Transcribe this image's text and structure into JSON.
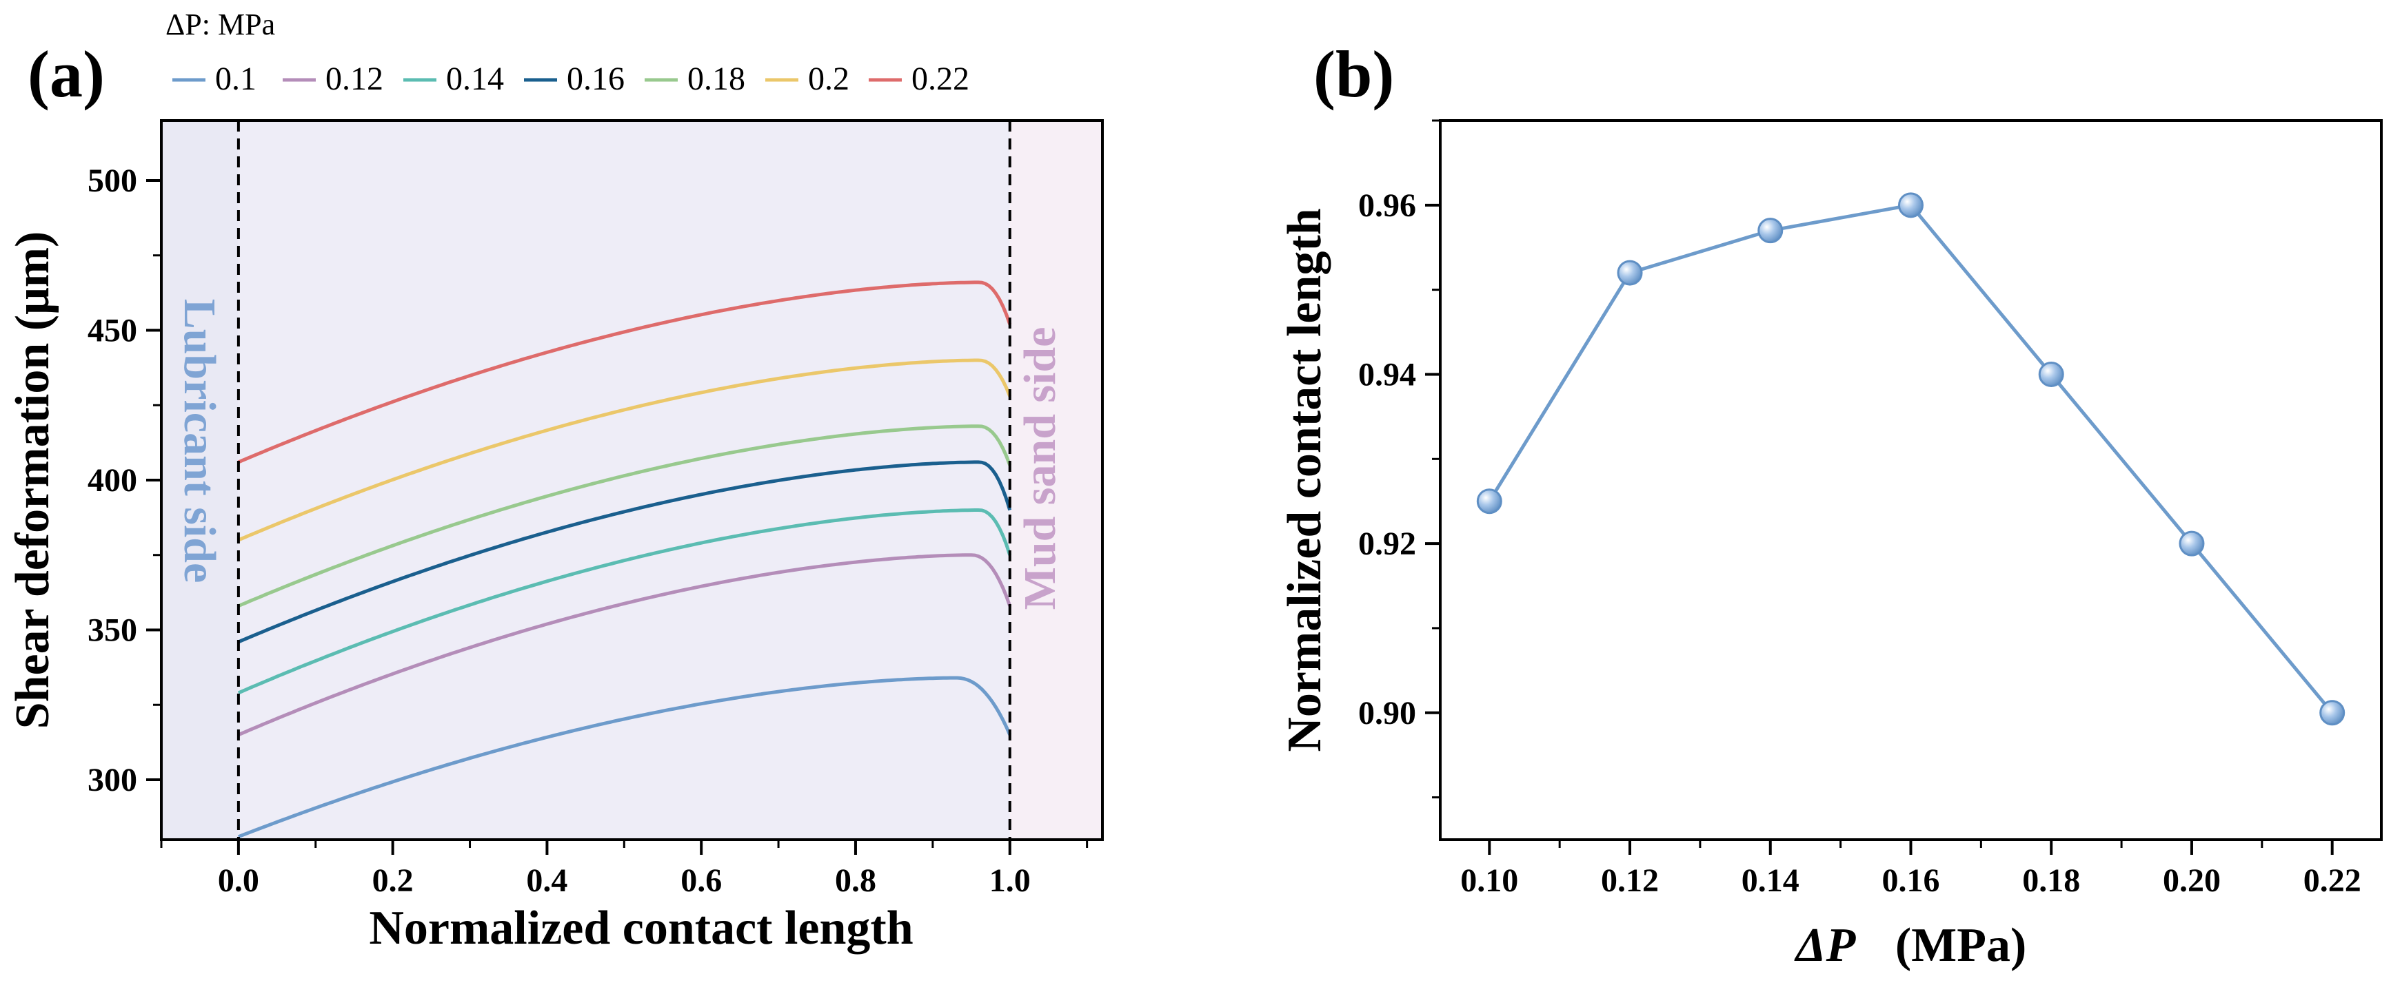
{
  "chart_data": [
    {
      "panel": "(a)",
      "type": "line",
      "xlabel": "Normalized contact length",
      "ylabel": "Shear deformation (μm)",
      "xlim": [
        -0.1,
        1.12
      ],
      "ylim": [
        280,
        520
      ],
      "x_ticks": [
        0.0,
        0.2,
        0.4,
        0.6,
        0.8,
        1.0
      ],
      "x_tick_labels": [
        "0.0",
        "0.2",
        "0.4",
        "0.6",
        "0.8",
        "1.0"
      ],
      "y_ticks": [
        300,
        350,
        400,
        450,
        500
      ],
      "y_tick_labels": [
        "300",
        "350",
        "400",
        "450",
        "500"
      ],
      "legend_title": "ΔP: MPa",
      "legend_position": "top",
      "reference_lines_x": [
        0.0,
        1.0
      ],
      "region_labels": [
        {
          "text": "Lubricant side",
          "color": "#7FA4D4"
        },
        {
          "text": "Mud sand side",
          "color": "#C8A2CB"
        }
      ],
      "region_colors": {
        "left": "#E9E9F4",
        "middle": "#EEEDF7",
        "right": "#F7EFF6"
      },
      "series": [
        {
          "name": "0.1",
          "color": "#6D9BCB",
          "y0": 281,
          "ypeak": 334,
          "xpeak": 0.93,
          "yend": 315
        },
        {
          "name": "0.12",
          "color": "#B48DB9",
          "y0": 315,
          "ypeak": 375,
          "xpeak": 0.95,
          "yend": 358
        },
        {
          "name": "0.14",
          "color": "#5BBCB2",
          "y0": 329,
          "ypeak": 390,
          "xpeak": 0.96,
          "yend": 375
        },
        {
          "name": "0.16",
          "color": "#1A5F8E",
          "y0": 346,
          "ypeak": 406,
          "xpeak": 0.96,
          "yend": 390
        },
        {
          "name": "0.18",
          "color": "#98C98E",
          "y0": 358,
          "ypeak": 418,
          "xpeak": 0.96,
          "yend": 405
        },
        {
          "name": "0.2",
          "color": "#EBC76A",
          "y0": 380,
          "ypeak": 440,
          "xpeak": 0.96,
          "yend": 428
        },
        {
          "name": "0.22",
          "color": "#DE6B6B",
          "y0": 406,
          "ypeak": 466,
          "xpeak": 0.96,
          "yend": 452
        }
      ]
    },
    {
      "panel": "(b)",
      "type": "line",
      "xlabel_italic": "ΔP",
      "xlabel_unit": "(MPa)",
      "ylabel": "Normalized contact length",
      "xlim": [
        0.093,
        0.227
      ],
      "ylim": [
        0.885,
        0.97
      ],
      "x": [
        0.1,
        0.12,
        0.14,
        0.16,
        0.18,
        0.2,
        0.22
      ],
      "y": [
        0.925,
        0.952,
        0.957,
        0.96,
        0.94,
        0.92,
        0.9
      ],
      "x_ticks": [
        0.1,
        0.12,
        0.14,
        0.16,
        0.18,
        0.2,
        0.22
      ],
      "x_tick_labels": [
        "0.10",
        "0.12",
        "0.14",
        "0.16",
        "0.18",
        "0.20",
        "0.22"
      ],
      "y_ticks": [
        0.9,
        0.92,
        0.94,
        0.96
      ],
      "y_tick_labels": [
        "0.90",
        "0.92",
        "0.94",
        "0.96"
      ],
      "line_color": "#6D9BCB",
      "marker_color": "#8FB4DE"
    }
  ]
}
